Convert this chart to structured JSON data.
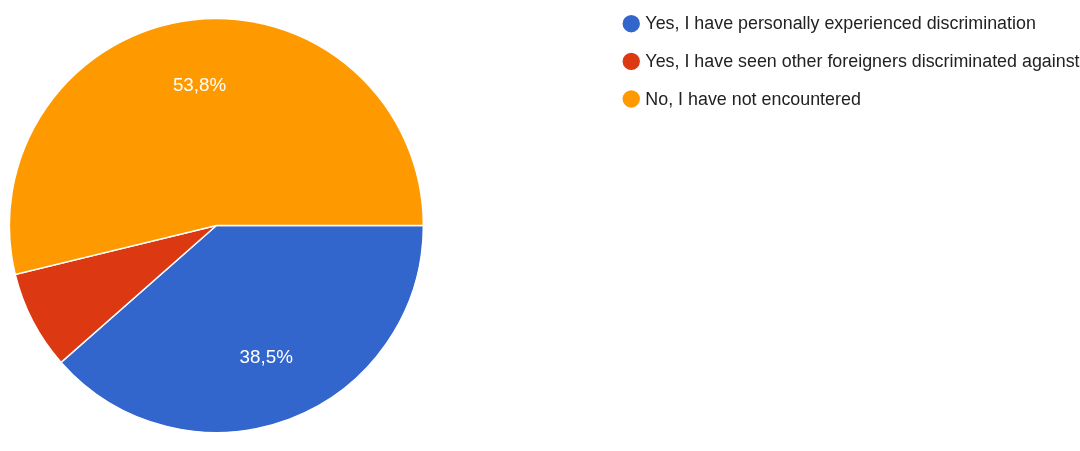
{
  "chart_data": {
    "type": "pie",
    "categories": [
      "Yes, I have personally experienced discrimination",
      "Yes, I have seen other foreigners discriminated against",
      "No, I have not encountered"
    ],
    "values": [
      38.5,
      7.7,
      53.8
    ],
    "colors": [
      "#3366cc",
      "#dc3912",
      "#ff9900"
    ],
    "value_labels": [
      "38,5%",
      null,
      "53,8%"
    ],
    "legend": "right"
  }
}
